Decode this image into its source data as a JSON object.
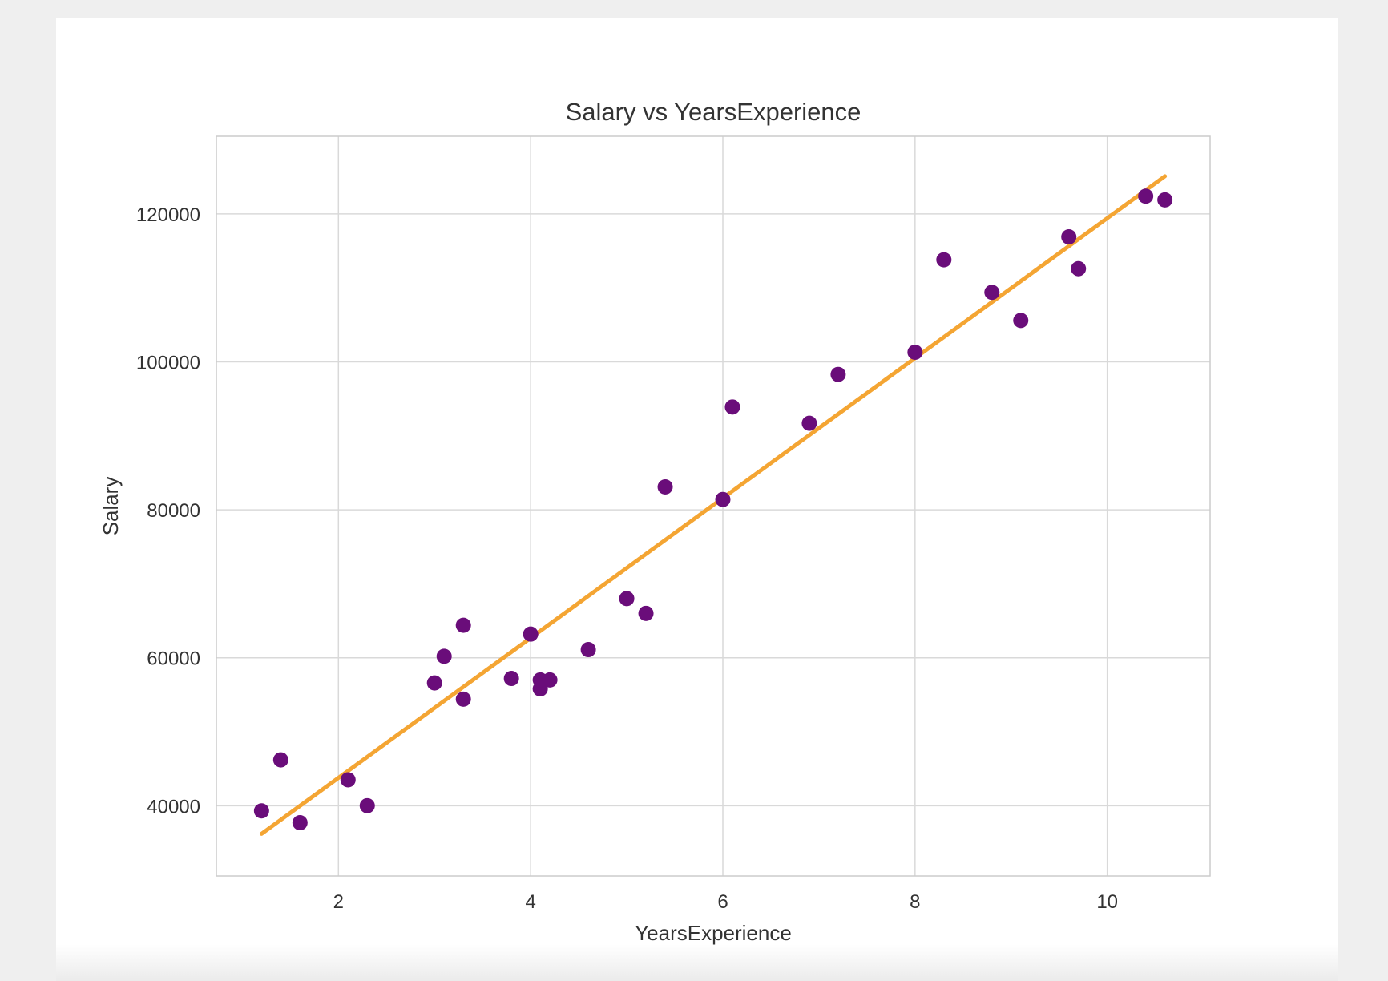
{
  "chart_data": {
    "type": "scatter",
    "title": "Salary vs YearsExperience",
    "xlabel": "YearsExperience",
    "ylabel": "Salary",
    "xlim": [
      0.73,
      11.07
    ],
    "ylim": [
      30500,
      130500
    ],
    "xticks": [
      2,
      4,
      6,
      8,
      10
    ],
    "yticks": [
      40000,
      60000,
      80000,
      100000,
      120000
    ],
    "grid": true,
    "legend": "none",
    "colors": {
      "points": "#6a0d7a",
      "line": "#f4a533",
      "grid": "#d9d9d9",
      "frame": "#cccccc",
      "text": "#333333"
    },
    "points": [
      {
        "x": 1.2,
        "y": 39300
      },
      {
        "x": 1.4,
        "y": 46200
      },
      {
        "x": 1.6,
        "y": 37700
      },
      {
        "x": 2.1,
        "y": 43500
      },
      {
        "x": 2.3,
        "y": 40000
      },
      {
        "x": 3.0,
        "y": 56600
      },
      {
        "x": 3.1,
        "y": 60200
      },
      {
        "x": 3.3,
        "y": 54400
      },
      {
        "x": 3.3,
        "y": 64400
      },
      {
        "x": 3.8,
        "y": 57200
      },
      {
        "x": 4.0,
        "y": 63200
      },
      {
        "x": 4.1,
        "y": 55800
      },
      {
        "x": 4.1,
        "y": 57000
      },
      {
        "x": 4.2,
        "y": 57000
      },
      {
        "x": 4.6,
        "y": 61100
      },
      {
        "x": 5.0,
        "y": 68000
      },
      {
        "x": 5.2,
        "y": 66000
      },
      {
        "x": 5.4,
        "y": 83100
      },
      {
        "x": 6.0,
        "y": 81400
      },
      {
        "x": 6.1,
        "y": 93900
      },
      {
        "x": 6.9,
        "y": 91700
      },
      {
        "x": 7.2,
        "y": 98300
      },
      {
        "x": 8.0,
        "y": 101300
      },
      {
        "x": 8.3,
        "y": 113800
      },
      {
        "x": 8.8,
        "y": 109400
      },
      {
        "x": 9.1,
        "y": 105600
      },
      {
        "x": 9.6,
        "y": 116900
      },
      {
        "x": 9.7,
        "y": 112600
      },
      {
        "x": 10.4,
        "y": 122400
      },
      {
        "x": 10.6,
        "y": 121900
      }
    ],
    "regression_line": {
      "x": [
        1.2,
        10.6
      ],
      "y": [
        36200,
        125100
      ]
    }
  }
}
